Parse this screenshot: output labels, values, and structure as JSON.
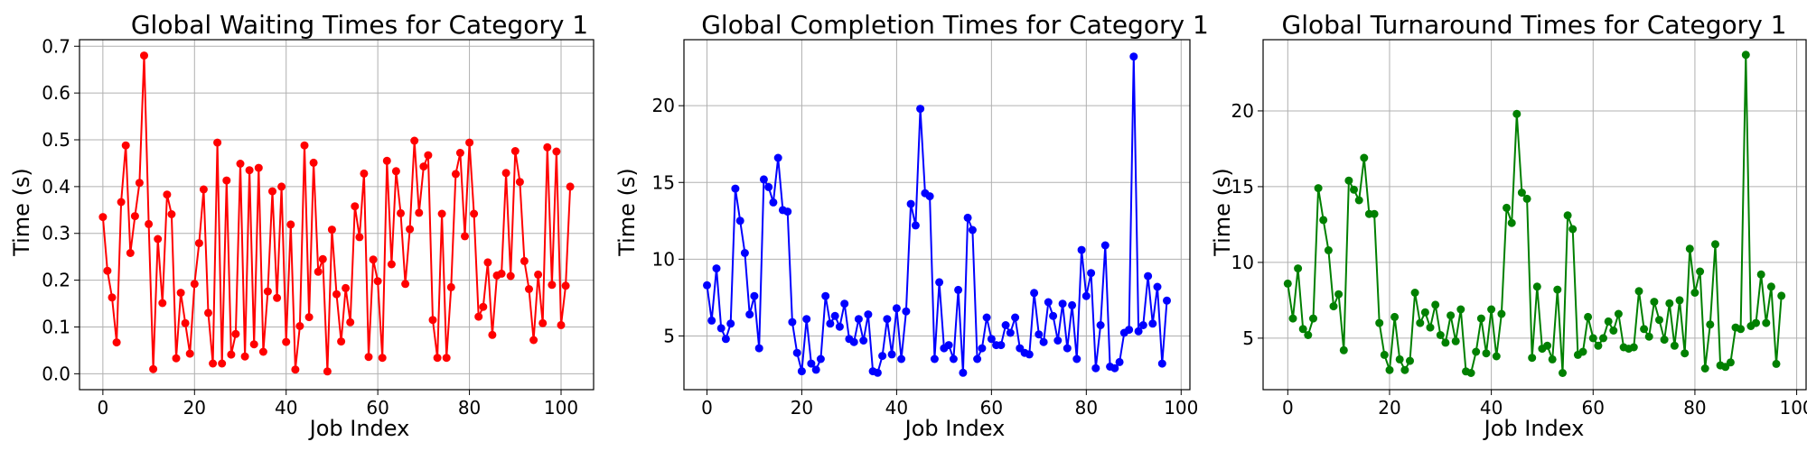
{
  "figure": {
    "background": "#ffffff",
    "grid_color": "#b0b0b0"
  },
  "chart_data": [
    {
      "type": "line",
      "title": "Global Waiting Times for Category 1",
      "xlabel": "Job Index",
      "ylabel": "Time (s)",
      "color": "#ff0000",
      "grid": true,
      "xlim": [
        -5.1,
        107.1
      ],
      "ylim": [
        -0.034,
        0.714
      ],
      "xticks": [
        0,
        20,
        40,
        60,
        80,
        100
      ],
      "yticks": [
        0.0,
        0.1,
        0.2,
        0.3,
        0.4,
        0.5,
        0.6,
        0.7
      ],
      "ytick_labels": [
        "0.0",
        "0.1",
        "0.2",
        "0.3",
        "0.4",
        "0.5",
        "0.6",
        "0.7"
      ],
      "series": [
        {
          "name": "Waiting Time",
          "values": [
            0.335,
            0.22,
            0.163,
            0.067,
            0.367,
            0.488,
            0.258,
            0.337,
            0.408,
            0.68,
            0.32,
            0.01,
            0.288,
            0.151,
            0.383,
            0.341,
            0.033,
            0.173,
            0.108,
            0.043,
            0.192,
            0.279,
            0.394,
            0.13,
            0.022,
            0.494,
            0.022,
            0.413,
            0.041,
            0.085,
            0.449,
            0.037,
            0.435,
            0.063,
            0.44,
            0.047,
            0.176,
            0.39,
            0.162,
            0.4,
            0.068,
            0.319,
            0.009,
            0.102,
            0.488,
            0.121,
            0.451,
            0.218,
            0.245,
            0.005,
            0.308,
            0.17,
            0.069,
            0.183,
            0.11,
            0.358,
            0.292,
            0.428,
            0.036,
            0.244,
            0.198,
            0.034,
            0.455,
            0.234,
            0.433,
            0.343,
            0.192,
            0.309,
            0.498,
            0.344,
            0.443,
            0.467,
            0.115,
            0.034,
            0.342,
            0.034,
            0.185,
            0.427,
            0.472,
            0.294,
            0.494,
            0.342,
            0.122,
            0.143,
            0.238,
            0.083,
            0.21,
            0.214,
            0.429,
            0.209,
            0.476,
            0.41,
            0.241,
            0.181,
            0.072,
            0.212,
            0.108,
            0.484,
            0.19,
            0.475,
            0.104,
            0.188,
            0.4
          ]
        }
      ]
    },
    {
      "type": "line",
      "title": "Global Completion Times for Category 1",
      "xlabel": "Job Index",
      "ylabel": "Time (s)",
      "color": "#0000ff",
      "grid": true,
      "xlim": [
        -4.85,
        101.85
      ],
      "ylim": [
        1.5,
        24.3
      ],
      "xticks": [
        0,
        20,
        40,
        60,
        80,
        100
      ],
      "yticks": [
        5,
        10,
        15,
        20
      ],
      "ytick_labels": [
        "5",
        "10",
        "15",
        "20"
      ],
      "series": [
        {
          "name": "Completion Time",
          "values": [
            8.3,
            6.0,
            9.4,
            5.5,
            4.8,
            5.8,
            14.6,
            12.5,
            10.4,
            6.4,
            7.6,
            4.2,
            15.2,
            14.7,
            13.7,
            16.6,
            13.2,
            13.1,
            5.9,
            3.9,
            2.7,
            6.1,
            3.2,
            2.8,
            3.5,
            7.6,
            5.8,
            6.3,
            5.6,
            7.1,
            4.8,
            4.6,
            6.1,
            4.7,
            6.4,
            2.7,
            2.6,
            3.7,
            6.1,
            3.8,
            6.8,
            3.5,
            6.6,
            13.6,
            12.2,
            19.8,
            14.3,
            14.1,
            3.5,
            8.5,
            4.2,
            4.4,
            3.5,
            8.0,
            2.6,
            12.7,
            11.9,
            3.5,
            4.2,
            6.2,
            4.8,
            4.4,
            4.4,
            5.7,
            5.2,
            6.2,
            4.2,
            3.9,
            3.8,
            7.8,
            5.1,
            4.6,
            7.2,
            6.3,
            4.7,
            7.1,
            4.2,
            7.0,
            3.5,
            10.6,
            7.6,
            9.1,
            2.9,
            5.7,
            10.9,
            3.0,
            2.9,
            3.3,
            5.2,
            5.4,
            23.2,
            5.3,
            5.7,
            8.9,
            5.8,
            8.2,
            3.2,
            7.3
          ]
        }
      ]
    },
    {
      "type": "line",
      "title": "Global Turnaround Times for Category 1",
      "xlabel": "Job Index",
      "ylabel": "Time (s)",
      "color": "#008000",
      "grid": true,
      "xlim": [
        -4.85,
        101.85
      ],
      "ylim": [
        1.6,
        24.7
      ],
      "xticks": [
        0,
        20,
        40,
        60,
        80,
        100
      ],
      "yticks": [
        5,
        10,
        15,
        20
      ],
      "ytick_labels": [
        "5",
        "10",
        "15",
        "20"
      ],
      "series": [
        {
          "name": "Turnaround Time",
          "values": [
            8.6,
            6.3,
            9.6,
            5.6,
            5.2,
            6.3,
            14.9,
            12.8,
            10.8,
            7.1,
            7.9,
            4.2,
            15.4,
            14.8,
            14.1,
            16.9,
            13.2,
            13.2,
            6.0,
            3.9,
            2.9,
            6.4,
            3.6,
            2.9,
            3.5,
            8.0,
            6.0,
            6.7,
            5.7,
            7.2,
            5.2,
            4.7,
            6.5,
            4.8,
            6.9,
            2.8,
            2.7,
            4.1,
            6.3,
            4.0,
            6.9,
            3.8,
            6.6,
            13.6,
            12.6,
            19.8,
            14.6,
            14.2,
            3.7,
            8.4,
            4.3,
            4.5,
            3.6,
            8.2,
            2.7,
            13.1,
            12.2,
            3.9,
            4.1,
            6.4,
            5.0,
            4.5,
            5.0,
            6.1,
            5.5,
            6.6,
            4.4,
            4.3,
            4.4,
            8.1,
            5.6,
            5.1,
            7.4,
            6.2,
            4.9,
            7.3,
            4.5,
            7.5,
            4.0,
            10.9,
            8.0,
            9.4,
            3.0,
            5.9,
            11.2,
            3.2,
            3.1,
            3.4,
            5.7,
            5.6,
            23.7,
            5.8,
            6.0,
            9.2,
            6.0,
            8.4,
            3.3,
            7.8
          ]
        }
      ]
    }
  ]
}
